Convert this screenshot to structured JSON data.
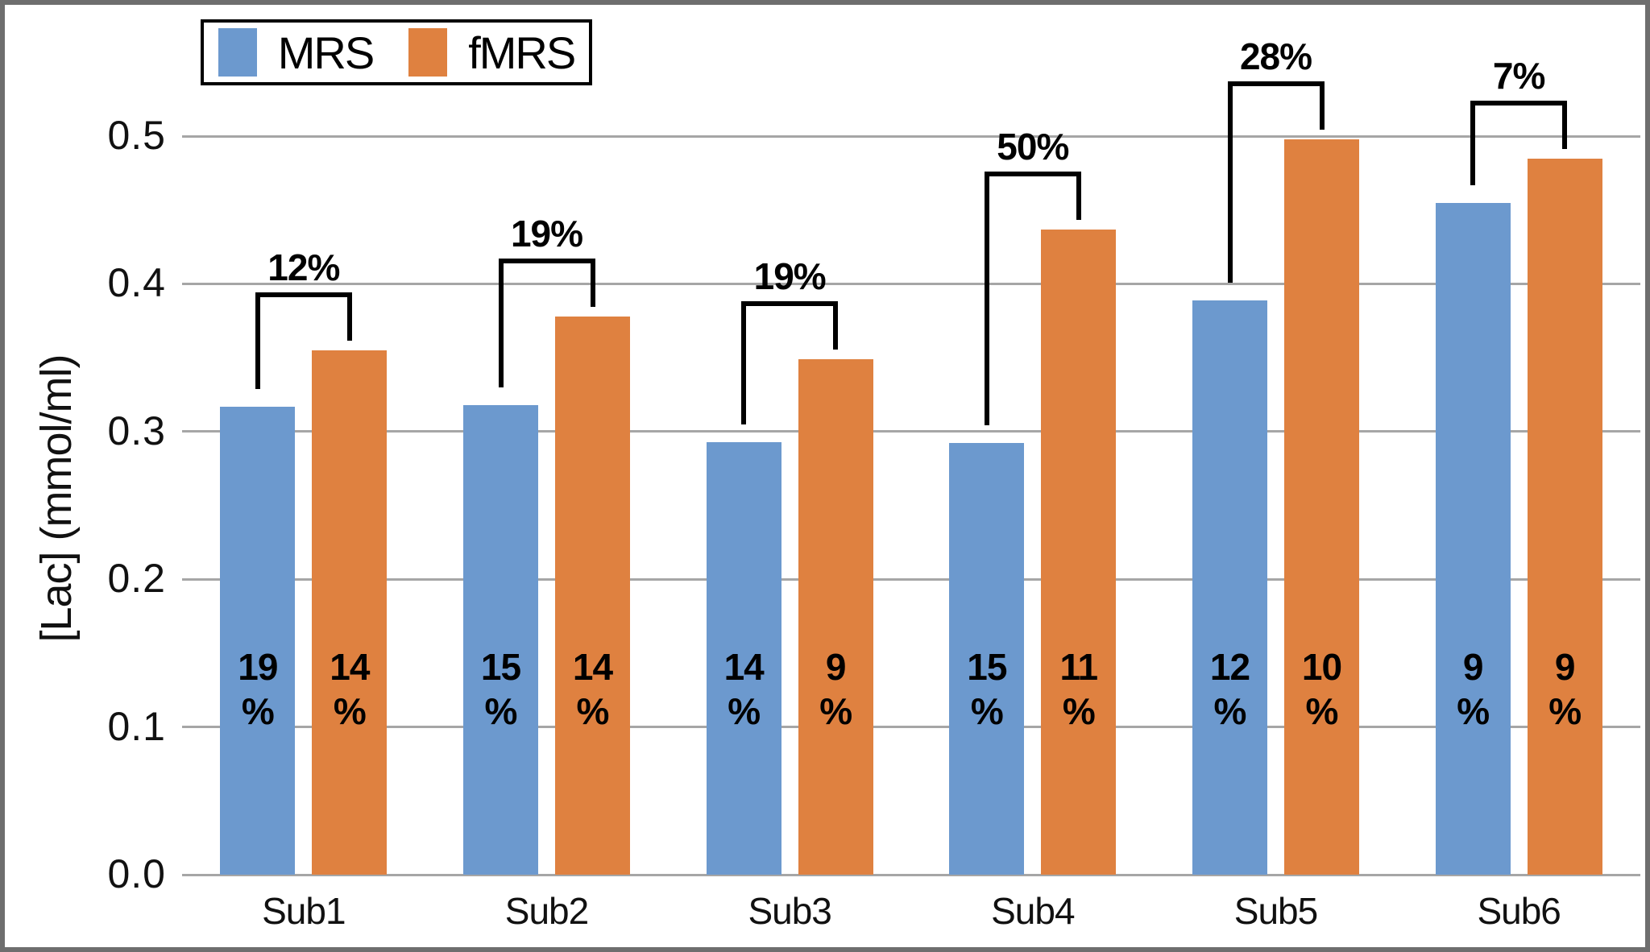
{
  "chart_data": {
    "type": "bar",
    "categories": [
      "Sub1",
      "Sub2",
      "Sub3",
      "Sub4",
      "Sub5",
      "Sub6"
    ],
    "series": [
      {
        "name": "MRS",
        "color": "#6c99ce",
        "values": [
          0.317,
          0.318,
          0.293,
          0.292,
          0.389,
          0.455
        ],
        "inside_labels": [
          "19",
          "15",
          "14",
          "15",
          "12",
          "9"
        ]
      },
      {
        "name": "fMRS",
        "color": "#df8140",
        "values": [
          0.355,
          0.378,
          0.349,
          0.437,
          0.498,
          0.485
        ],
        "inside_labels": [
          "14",
          "14",
          "9",
          "11",
          "10",
          "9"
        ]
      }
    ],
    "inside_label_unit": "%",
    "diff_labels": [
      "12%",
      "19%",
      "19%",
      "50%",
      "28%",
      "7%"
    ],
    "title": "",
    "xlabel": "",
    "ylabel": "[Lac] (mmol/ml)",
    "ylim": [
      0,
      0.55
    ],
    "yticks": [
      "0.0",
      "0.1",
      "0.2",
      "0.3",
      "0.4",
      "0.5"
    ],
    "grid": "horizontal",
    "legend_position": "top-inside-left",
    "colors": {
      "grid": "#a6a6a6",
      "bracket": "#000000",
      "text": "#000000",
      "frame": "#6e6e6e"
    }
  },
  "legend": {
    "items": [
      {
        "label": "MRS",
        "color": "#6c99ce"
      },
      {
        "label": "fMRS",
        "color": "#df8140"
      }
    ]
  }
}
